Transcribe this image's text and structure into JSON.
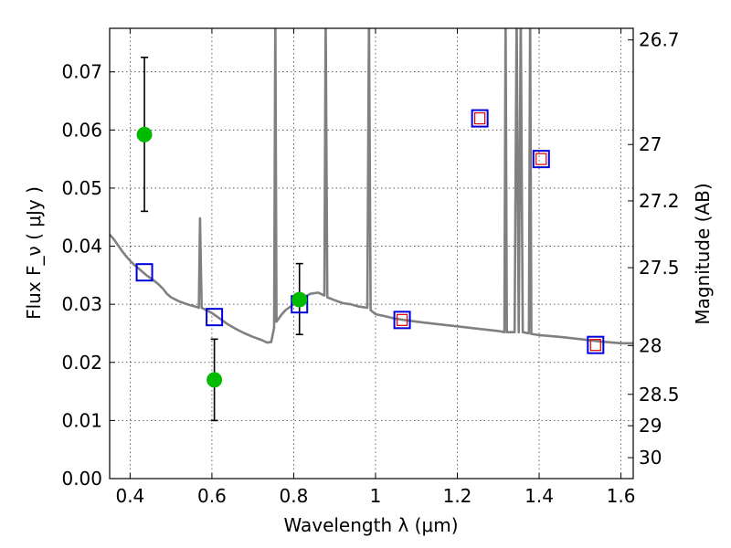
{
  "chart_data": {
    "type": "scatter",
    "xlabel": "Wavelength  λ (μm)",
    "ylabel": "Flux  F_ν  ( μJy )",
    "y2label": "Magnitude (AB)",
    "xlim": [
      0.35,
      1.63
    ],
    "ylim": [
      0.0,
      0.0775
    ],
    "grid": true,
    "x_ticks": [
      0.4,
      0.6,
      0.8,
      1.0,
      1.2,
      1.4,
      1.6
    ],
    "x_tick_labels": [
      "0.4",
      "0.6",
      "0.8",
      "1",
      "1.2",
      "1.4",
      "1.6"
    ],
    "y_ticks": [
      0.0,
      0.01,
      0.02,
      0.03,
      0.04,
      0.05,
      0.06,
      0.07
    ],
    "y_tick_labels": [
      "0.00",
      "0.01",
      "0.02",
      "0.03",
      "0.04",
      "0.05",
      "0.06",
      "0.07"
    ],
    "y2_ticks": [
      {
        "label": "26.7",
        "flux": 0.0755
      },
      {
        "label": "27",
        "flux": 0.0575
      },
      {
        "label": "27.2",
        "flux": 0.0478
      },
      {
        "label": "27.5",
        "flux": 0.0363
      },
      {
        "label": "28",
        "flux": 0.0229
      },
      {
        "label": "28.5",
        "flux": 0.0145
      },
      {
        "label": "29",
        "flux": 0.0091
      },
      {
        "label": "30",
        "flux": 0.0036
      }
    ],
    "series": [
      {
        "kind": "measured",
        "color": "#00bb00",
        "points": [
          {
            "x": 0.435,
            "y": 0.0592,
            "yerr_low": 0.046,
            "yerr_high": 0.0725
          },
          {
            "x": 0.606,
            "y": 0.017,
            "yerr_low": 0.01,
            "yerr_high": 0.024
          },
          {
            "x": 0.814,
            "y": 0.0308,
            "yerr_low": 0.0248,
            "yerr_high": 0.037
          }
        ]
      },
      {
        "kind": "model-band-blue",
        "color": "#0000dd",
        "points": [
          {
            "x": 0.435,
            "y": 0.0355
          },
          {
            "x": 0.606,
            "y": 0.0278
          },
          {
            "x": 0.814,
            "y": 0.03
          },
          {
            "x": 1.065,
            "y": 0.0273
          },
          {
            "x": 1.255,
            "y": 0.062
          },
          {
            "x": 1.405,
            "y": 0.055
          },
          {
            "x": 1.538,
            "y": 0.023
          }
        ]
      },
      {
        "kind": "model-band-red",
        "color": "#dd0000",
        "points": [
          {
            "x": 1.065,
            "y": 0.0273
          },
          {
            "x": 1.255,
            "y": 0.062
          },
          {
            "x": 1.405,
            "y": 0.055
          },
          {
            "x": 1.538,
            "y": 0.023
          }
        ]
      },
      {
        "kind": "template-spectrum",
        "color": "#808080",
        "points": [
          [
            0.35,
            0.042
          ],
          [
            0.36,
            0.0412
          ],
          [
            0.37,
            0.0402
          ],
          [
            0.38,
            0.0392
          ],
          [
            0.39,
            0.0383
          ],
          [
            0.4,
            0.0375
          ],
          [
            0.41,
            0.0368
          ],
          [
            0.42,
            0.0362
          ],
          [
            0.43,
            0.0356
          ],
          [
            0.44,
            0.035
          ],
          [
            0.45,
            0.0345
          ],
          [
            0.46,
            0.034
          ],
          [
            0.47,
            0.0334
          ],
          [
            0.48,
            0.0327
          ],
          [
            0.49,
            0.0318
          ],
          [
            0.5,
            0.0312
          ],
          [
            0.52,
            0.0305
          ],
          [
            0.54,
            0.03
          ],
          [
            0.56,
            0.0296
          ],
          [
            0.568,
            0.0294
          ],
          [
            0.571,
            0.0448
          ],
          [
            0.575,
            0.0294
          ],
          [
            0.6,
            0.0285
          ],
          [
            0.62,
            0.0275
          ],
          [
            0.64,
            0.0265
          ],
          [
            0.66,
            0.0257
          ],
          [
            0.68,
            0.025
          ],
          [
            0.7,
            0.0244
          ],
          [
            0.72,
            0.0239
          ],
          [
            0.735,
            0.0234
          ],
          [
            0.745,
            0.0235
          ],
          [
            0.752,
            0.026
          ],
          [
            0.755,
            0.08
          ],
          [
            0.758,
            0.027
          ],
          [
            0.77,
            0.0282
          ],
          [
            0.78,
            0.029
          ],
          [
            0.8,
            0.03
          ],
          [
            0.82,
            0.031
          ],
          [
            0.84,
            0.0318
          ],
          [
            0.86,
            0.032
          ],
          [
            0.875,
            0.0315
          ],
          [
            0.878,
            0.08
          ],
          [
            0.882,
            0.0312
          ],
          [
            0.9,
            0.0307
          ],
          [
            0.92,
            0.0302
          ],
          [
            0.94,
            0.03
          ],
          [
            0.96,
            0.0296
          ],
          [
            0.98,
            0.0294
          ],
          [
            0.984,
            0.08
          ],
          [
            0.988,
            0.029
          ],
          [
            1.0,
            0.0283
          ],
          [
            1.02,
            0.028
          ],
          [
            1.05,
            0.0275
          ],
          [
            1.1,
            0.027
          ],
          [
            1.15,
            0.0266
          ],
          [
            1.2,
            0.0262
          ],
          [
            1.25,
            0.0258
          ],
          [
            1.3,
            0.0254
          ],
          [
            1.315,
            0.0252
          ],
          [
            1.318,
            0.08
          ],
          [
            1.321,
            0.0252
          ],
          [
            1.34,
            0.0252
          ],
          [
            1.345,
            0.08
          ],
          [
            1.35,
            0.0252
          ],
          [
            1.355,
            0.08
          ],
          [
            1.36,
            0.0252
          ],
          [
            1.375,
            0.025
          ],
          [
            1.378,
            0.08
          ],
          [
            1.381,
            0.0249
          ],
          [
            1.4,
            0.0247
          ],
          [
            1.45,
            0.0244
          ],
          [
            1.5,
            0.024
          ],
          [
            1.55,
            0.0236
          ],
          [
            1.6,
            0.0233
          ],
          [
            1.63,
            0.0233
          ]
        ]
      }
    ]
  }
}
